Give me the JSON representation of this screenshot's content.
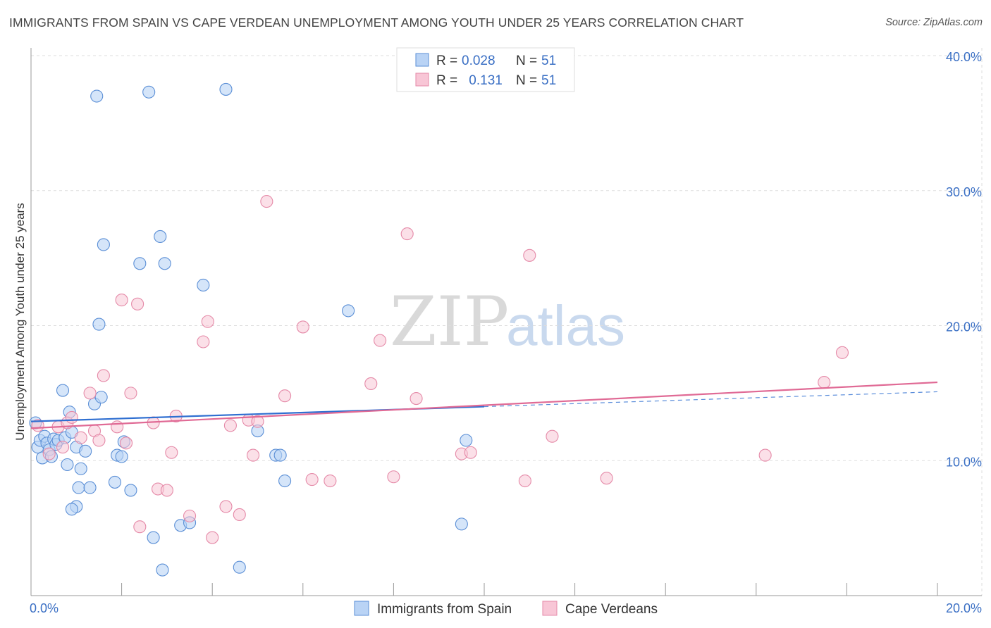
{
  "header": {
    "title": "IMMIGRANTS FROM SPAIN VS CAPE VERDEAN UNEMPLOYMENT AMONG YOUTH UNDER 25 YEARS CORRELATION CHART",
    "source": "Source: ZipAtlas.com"
  },
  "watermark": {
    "part1": "ZIP",
    "part2": "atlas"
  },
  "legend": {
    "series1": {
      "r_label": "R = ",
      "r_value": "0.028",
      "n_label": "N = ",
      "n_value": "51"
    },
    "series2": {
      "r_label": "R = ",
      "r_value": " 0.131",
      "n_label": "N = ",
      "n_value": "51"
    }
  },
  "colors": {
    "spain_fill": "#b9d3f5",
    "spain_stroke": "#5b8fd6",
    "spain_line": "#2f6fd1",
    "cape_fill": "#f8c6d6",
    "cape_stroke": "#e58aa8",
    "cape_line": "#e06a95",
    "grid": "#dddddd",
    "accent": "#3a6fc4"
  },
  "chart_data": {
    "type": "scatter",
    "title": "IMMIGRANTS FROM SPAIN VS CAPE VERDEAN UNEMPLOYMENT AMONG YOUTH UNDER 25 YEARS CORRELATION CHART",
    "xlabel": "",
    "ylabel": "Unemployment Among Youth under 25 years",
    "xlim": [
      0,
      20
    ],
    "ylim": [
      0,
      40
    ],
    "x_tick_labels": [
      "0.0%",
      "20.0%"
    ],
    "y_ticks": [
      10,
      20,
      30,
      40
    ],
    "y_tick_labels": [
      "10.0%",
      "20.0%",
      "30.0%",
      "40.0%"
    ],
    "grid": true,
    "legend_position": "top-center",
    "series": [
      {
        "name": "Immigrants from Spain",
        "r": 0.028,
        "n": 51,
        "trend": {
          "x0": 0,
          "y0": 12.9,
          "x1": 10,
          "y1": 14.0,
          "dashed_to_x": 20,
          "dashed_to_y": 15.1
        },
        "points": [
          [
            0.1,
            12.8
          ],
          [
            0.15,
            11.0
          ],
          [
            0.2,
            11.5
          ],
          [
            0.25,
            10.2
          ],
          [
            0.3,
            11.8
          ],
          [
            0.35,
            11.3
          ],
          [
            0.4,
            10.8
          ],
          [
            0.45,
            10.3
          ],
          [
            0.5,
            11.6
          ],
          [
            0.55,
            11.2
          ],
          [
            0.6,
            11.5
          ],
          [
            0.7,
            15.2
          ],
          [
            0.75,
            11.7
          ],
          [
            0.8,
            9.7
          ],
          [
            0.85,
            13.6
          ],
          [
            0.9,
            12.1
          ],
          [
            1.0,
            11.0
          ],
          [
            1.05,
            8.0
          ],
          [
            1.1,
            9.4
          ],
          [
            1.2,
            10.7
          ],
          [
            1.3,
            8.0
          ],
          [
            1.4,
            14.2
          ],
          [
            1.45,
            37.0
          ],
          [
            1.6,
            26.0
          ],
          [
            1.5,
            20.1
          ],
          [
            1.55,
            14.7
          ],
          [
            1.85,
            8.4
          ],
          [
            1.9,
            10.4
          ],
          [
            2.05,
            11.4
          ],
          [
            2.0,
            10.3
          ],
          [
            2.2,
            7.8
          ],
          [
            2.4,
            24.6
          ],
          [
            2.6,
            37.3
          ],
          [
            2.7,
            4.3
          ],
          [
            2.85,
            26.6
          ],
          [
            2.95,
            24.6
          ],
          [
            2.9,
            1.9
          ],
          [
            3.3,
            5.2
          ],
          [
            3.5,
            5.4
          ],
          [
            3.8,
            23.0
          ],
          [
            4.3,
            37.5
          ],
          [
            4.6,
            2.1
          ],
          [
            5.0,
            12.2
          ],
          [
            5.4,
            10.4
          ],
          [
            5.5,
            10.4
          ],
          [
            5.6,
            8.5
          ],
          [
            7.0,
            21.1
          ],
          [
            9.5,
            5.3
          ],
          [
            9.6,
            11.5
          ],
          [
            1.0,
            6.6
          ],
          [
            0.9,
            6.4
          ]
        ]
      },
      {
        "name": "Cape Verdeans",
        "r": 0.131,
        "n": 51,
        "trend": {
          "x0": 0,
          "y0": 12.4,
          "x1": 20,
          "y1": 15.8
        },
        "points": [
          [
            0.15,
            12.6
          ],
          [
            0.4,
            10.5
          ],
          [
            0.6,
            12.5
          ],
          [
            0.7,
            11.0
          ],
          [
            0.8,
            12.8
          ],
          [
            0.9,
            13.2
          ],
          [
            1.1,
            11.7
          ],
          [
            1.3,
            15.0
          ],
          [
            1.4,
            12.2
          ],
          [
            1.5,
            11.5
          ],
          [
            1.6,
            16.3
          ],
          [
            1.9,
            12.5
          ],
          [
            2.0,
            21.9
          ],
          [
            2.1,
            11.3
          ],
          [
            2.2,
            15.0
          ],
          [
            2.35,
            21.6
          ],
          [
            2.4,
            5.1
          ],
          [
            2.7,
            12.8
          ],
          [
            2.8,
            7.9
          ],
          [
            3.0,
            7.8
          ],
          [
            3.1,
            10.6
          ],
          [
            3.2,
            13.3
          ],
          [
            3.5,
            5.9
          ],
          [
            3.8,
            18.8
          ],
          [
            3.9,
            20.3
          ],
          [
            4.0,
            4.3
          ],
          [
            4.3,
            6.6
          ],
          [
            4.4,
            12.6
          ],
          [
            4.6,
            6.0
          ],
          [
            4.8,
            13.0
          ],
          [
            4.9,
            10.4
          ],
          [
            5.0,
            12.9
          ],
          [
            5.2,
            29.2
          ],
          [
            5.6,
            14.8
          ],
          [
            6.0,
            19.9
          ],
          [
            6.2,
            8.6
          ],
          [
            6.6,
            8.5
          ],
          [
            7.5,
            15.7
          ],
          [
            7.7,
            18.9
          ],
          [
            8.0,
            8.8
          ],
          [
            8.3,
            26.8
          ],
          [
            8.5,
            14.6
          ],
          [
            9.5,
            10.5
          ],
          [
            9.7,
            10.6
          ],
          [
            10.9,
            8.5
          ],
          [
            11.0,
            25.2
          ],
          [
            11.5,
            11.8
          ],
          [
            12.7,
            8.7
          ],
          [
            16.2,
            10.4
          ],
          [
            17.5,
            15.8
          ],
          [
            17.9,
            18.0
          ]
        ]
      }
    ]
  }
}
